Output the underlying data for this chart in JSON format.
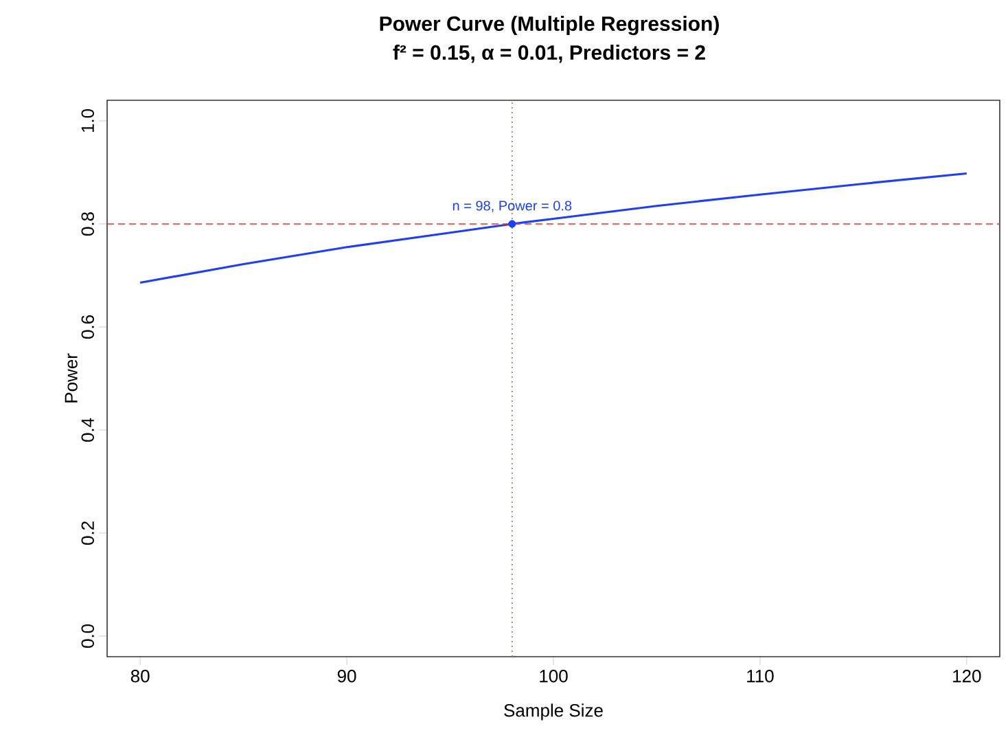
{
  "chart_data": {
    "type": "line",
    "title": "Power Curve (Multiple Regression)",
    "subtitle": "f² = 0.15, α = 0.01, Predictors = 2",
    "xlabel": "Sample Size",
    "ylabel": "Power",
    "series": [
      {
        "color": "#1f3ff5",
        "x": [
          80,
          85,
          90,
          95,
          98,
          100,
          105,
          110,
          115,
          120
        ],
        "values": [
          0.686,
          0.722,
          0.755,
          0.783,
          0.8,
          0.81,
          0.835,
          0.857,
          0.878,
          0.898
        ]
      },
      {
        "type": "scatter",
        "color": "#1f3ff5",
        "x": [
          98
        ],
        "values": [
          0.8
        ]
      }
    ],
    "annotations": [
      {
        "text": "n = 98, Power = 0.8",
        "x": 98,
        "y": 0.8
      }
    ],
    "ref_lines": [
      {
        "axis": "y",
        "value": 0.8,
        "color": "#ff2a1a",
        "line_style": "dashed"
      },
      {
        "axis": "x",
        "value": 98,
        "color": "#5a9a4a",
        "line_style": "dotted"
      }
    ],
    "xlim": [
      78.4,
      121.6
    ],
    "ylim": [
      -0.04,
      1.04
    ],
    "xticks": [
      80,
      90,
      100,
      110,
      120
    ],
    "yticks": [
      {
        "value": 0,
        "label": "0.0"
      },
      {
        "value": 0.2,
        "label": "0.2"
      },
      {
        "value": 0.4,
        "label": "0.4"
      },
      {
        "value": 0.6,
        "label": "0.6"
      },
      {
        "value": 0.8,
        "label": "0.8"
      },
      {
        "value": 1,
        "label": "1.0"
      }
    ],
    "grid": false
  }
}
